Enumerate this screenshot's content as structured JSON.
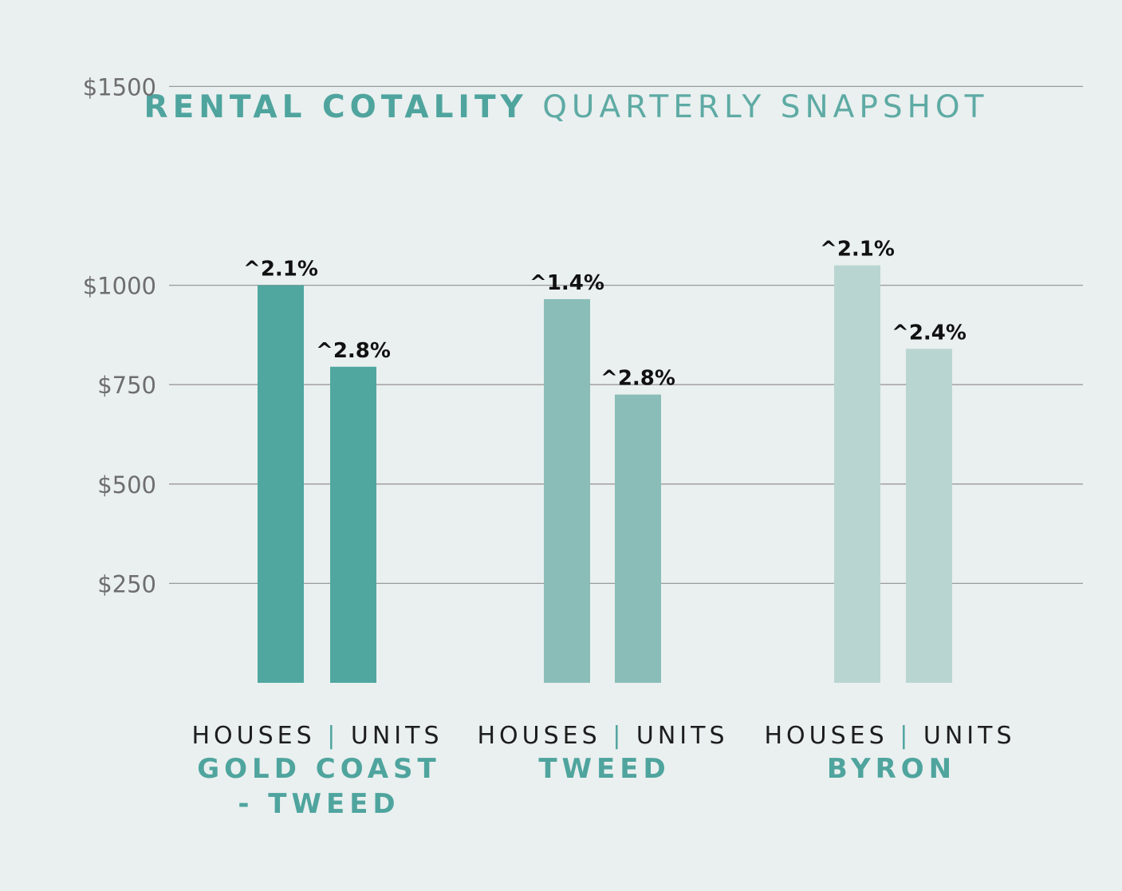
{
  "title": {
    "bold": "RENTAL COTALITY",
    "light": "QUARTERLY SNAPSHOT"
  },
  "colors": {
    "background": "#e9f0ef",
    "accent": "#4fa49e",
    "gold_coast": "#50a7a0",
    "tweed": "#8abdb7",
    "byron": "#b9d5d1",
    "gridline": "#9a9a9a",
    "tick_text": "#6e6e6e"
  },
  "chart_data": {
    "type": "bar",
    "title": "RENTAL COTALITY QUARTERLY SNAPSHOT",
    "ylim": [
      0,
      1500
    ],
    "yticks": [
      {
        "value": 250,
        "label": "$250"
      },
      {
        "value": 500,
        "label": "$500"
      },
      {
        "value": 750,
        "label": "$750"
      },
      {
        "value": 1000,
        "label": "$1000"
      },
      {
        "value": 1500,
        "label": "$1500"
      }
    ],
    "grid": true,
    "groups": [
      {
        "region": "GOLD COAST - TWEED",
        "region_lines": [
          "GOLD COAST",
          "- TWEED"
        ],
        "sub_label": {
          "left": "HOUSES",
          "sep": "|",
          "right": "UNITS"
        },
        "bars": [
          {
            "category": "HOUSES",
            "value": 1000,
            "change_label": "^2.1%"
          },
          {
            "category": "UNITS",
            "value": 795,
            "change_label": "^2.8%"
          }
        ]
      },
      {
        "region": "TWEED",
        "region_lines": [
          "TWEED"
        ],
        "sub_label": {
          "left": "HOUSES",
          "sep": "|",
          "right": "UNITS"
        },
        "bars": [
          {
            "category": "HOUSES",
            "value": 965,
            "change_label": "^1.4%"
          },
          {
            "category": "UNITS",
            "value": 725,
            "change_label": "^2.8%"
          }
        ]
      },
      {
        "region": "BYRON",
        "region_lines": [
          "BYRON"
        ],
        "sub_label": {
          "left": "HOUSES",
          "sep": "|",
          "right": "UNITS"
        },
        "bars": [
          {
            "category": "HOUSES",
            "value": 1050,
            "change_label": "^2.1%"
          },
          {
            "category": "UNITS",
            "value": 840,
            "change_label": "^2.4%"
          }
        ]
      }
    ]
  }
}
